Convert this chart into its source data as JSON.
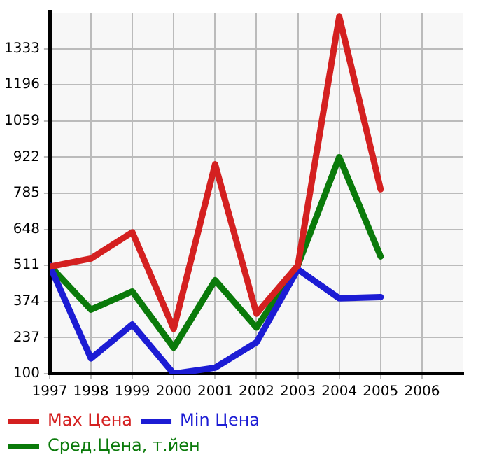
{
  "chart_data": {
    "type": "line",
    "x": [
      1997,
      1998,
      1999,
      2000,
      2001,
      2002,
      2003,
      2004,
      2005
    ],
    "series": [
      {
        "name": "Max Цена",
        "color": "#d42020",
        "values": [
          506,
          537,
          637,
          270,
          895,
          328,
          511,
          1455,
          800
        ]
      },
      {
        "name": "Min Цена",
        "color": "#1c1cd4",
        "values": [
          511,
          158,
          287,
          100,
          123,
          219,
          496,
          386,
          391
        ]
      },
      {
        "name": "Сред.Цена, т.йен",
        "color": "#0a7a0a",
        "values": [
          511,
          343,
          412,
          199,
          455,
          275,
          511,
          922,
          545
        ]
      }
    ],
    "xlim": [
      1997,
      2007
    ],
    "xticks": [
      1997,
      1998,
      1999,
      2000,
      2001,
      2002,
      2003,
      2004,
      2005,
      2006
    ],
    "ylim": [
      100,
      1470
    ],
    "yticks": [
      100,
      237,
      374,
      511,
      648,
      785,
      922,
      1059,
      1196,
      1333
    ],
    "grid": true,
    "legend": "bottom",
    "marker": "none",
    "line_style": "solid"
  }
}
